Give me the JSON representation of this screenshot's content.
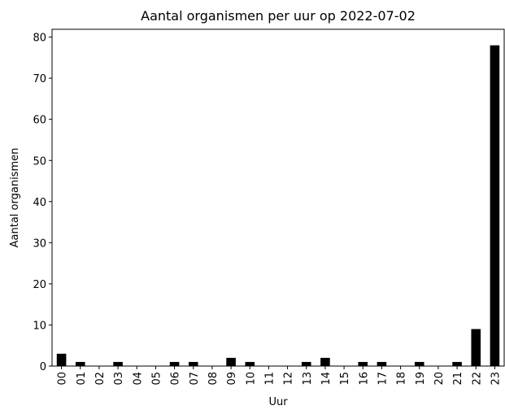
{
  "chart_data": {
    "type": "bar",
    "title": "Aantal organismen per uur op 2022-07-02",
    "xlabel": "Uur",
    "ylabel": "Aantal organismen",
    "categories": [
      "00",
      "01",
      "02",
      "03",
      "04",
      "05",
      "06",
      "07",
      "08",
      "09",
      "10",
      "11",
      "12",
      "13",
      "14",
      "15",
      "16",
      "17",
      "18",
      "19",
      "20",
      "21",
      "22",
      "23"
    ],
    "values": [
      3,
      1,
      0,
      1,
      0,
      0,
      1,
      1,
      0,
      2,
      1,
      0,
      0,
      1,
      2,
      0,
      1,
      1,
      0,
      1,
      0,
      1,
      9,
      78
    ],
    "color": "#000000",
    "ylim": [
      0,
      81.9
    ],
    "yticks": [
      0,
      10,
      20,
      30,
      40,
      50,
      60,
      70,
      80
    ],
    "grid": false
  }
}
